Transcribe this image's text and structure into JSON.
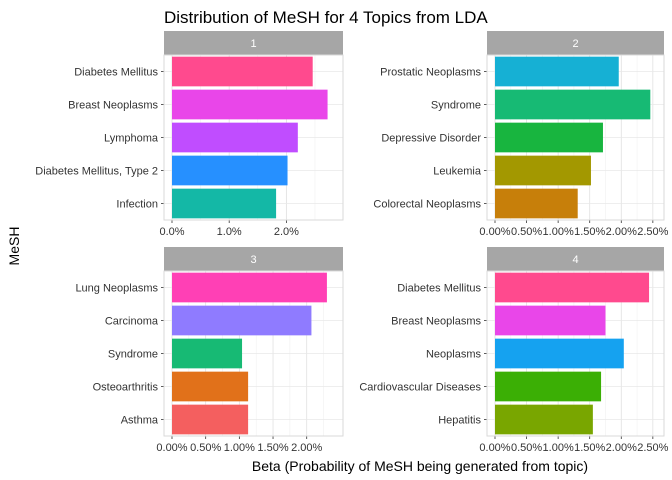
{
  "chart_data": {
    "type": "bar",
    "orientation": "horizontal",
    "title": "Distribution of MeSH for 4 Topics from LDA",
    "xlabel": "Beta (Probability of MeSH being generated from topic)",
    "ylabel": "MeSH",
    "grid": true,
    "facets": [
      {
        "strip": "1",
        "categories": [
          "Diabetes Mellitus",
          "Breast Neoplasms",
          "Lymphoma",
          "Diabetes Mellitus, Type 2",
          "Infection"
        ],
        "values": [
          0.0246,
          0.0272,
          0.022,
          0.0202,
          0.0182
        ],
        "colors": [
          "#FF4A8E",
          "#E946E9",
          "#C04DFF",
          "#2690FF",
          "#14B8A6"
        ],
        "xlim": [
          0,
          0.0285
        ],
        "ticks": [
          0,
          0.01,
          0.02
        ],
        "tick_labels": [
          "0.0%",
          "1.0%",
          "2.0%"
        ]
      },
      {
        "strip": "2",
        "categories": [
          "Prostatic Neoplasms",
          "Syndrome",
          "Depressive Disorder",
          "Leukemia",
          "Colorectal Neoplasms"
        ],
        "values": [
          0.0196,
          0.0246,
          0.0171,
          0.0152,
          0.0131
        ],
        "colors": [
          "#16B0D4",
          "#17BA74",
          "#18B53F",
          "#A39800",
          "#C77F0A"
        ],
        "xlim": [
          0,
          0.0255
        ],
        "ticks": [
          0,
          0.005,
          0.01,
          0.015,
          0.02,
          0.025
        ],
        "tick_labels": [
          "0.00%",
          "0.50%",
          "1.00%",
          "1.50%",
          "2.00%",
          "2.50%"
        ]
      },
      {
        "strip": "3",
        "categories": [
          "Lung Neoplasms",
          "Carcinoma",
          "Syndrome",
          "Osteoarthritis",
          "Asthma"
        ],
        "values": [
          0.023,
          0.0207,
          0.0104,
          0.0113,
          0.0113
        ],
        "colors": [
          "#FF40B5",
          "#8F7BFF",
          "#17BA74",
          "#E1711A",
          "#F45F5F"
        ],
        "xlim": [
          0,
          0.0242
        ],
        "ticks": [
          0,
          0.005,
          0.01,
          0.015,
          0.02
        ],
        "tick_labels": [
          "0.00%",
          "0.50%",
          "1.00%",
          "1.50%",
          "2.00%"
        ]
      },
      {
        "strip": "4",
        "categories": [
          "Diabetes Mellitus",
          "Breast Neoplasms",
          "Neoplasms",
          "Cardiovascular Diseases",
          "Hepatitis"
        ],
        "values": [
          0.0244,
          0.0175,
          0.0204,
          0.0168,
          0.0155
        ],
        "colors": [
          "#FF4A8E",
          "#E946E9",
          "#15A2F0",
          "#3BAF05",
          "#79A600"
        ],
        "xlim": [
          0,
          0.0255
        ],
        "ticks": [
          0,
          0.005,
          0.01,
          0.015,
          0.02,
          0.025
        ],
        "tick_labels": [
          "0.00%",
          "0.50%",
          "1.00%",
          "1.50%",
          "2.00%",
          "2.50%"
        ]
      }
    ]
  }
}
